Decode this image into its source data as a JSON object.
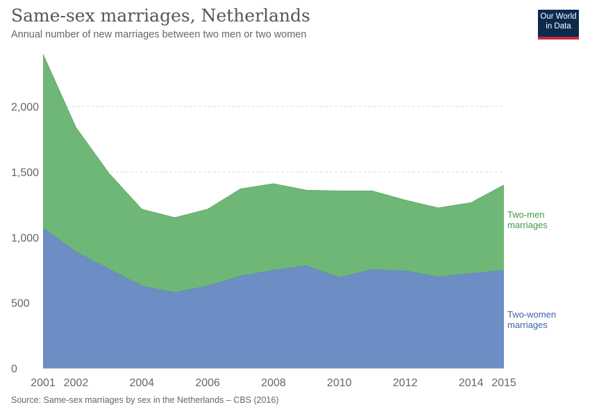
{
  "header": {
    "title": "Same-sex marriages, Netherlands",
    "subtitle": "Annual number of new marriages between two men or two women"
  },
  "logo": {
    "line1": "Our World",
    "line2": "in Data"
  },
  "footer": {
    "source": "Source: Same-sex marriages by sex in the Netherlands – CBS (2016)"
  },
  "chart_data": {
    "type": "area",
    "stacked": true,
    "x": [
      2001,
      2002,
      2003,
      2004,
      2005,
      2006,
      2007,
      2008,
      2009,
      2010,
      2011,
      2012,
      2013,
      2014,
      2015
    ],
    "series": [
      {
        "name": "Two-women marriages",
        "label_lines": [
          "Two-women",
          "marriages"
        ],
        "color": "#6c8ec4",
        "values": [
          1075,
          890,
          760,
          630,
          580,
          630,
          705,
          750,
          785,
          695,
          755,
          745,
          700,
          725,
          750
        ]
      },
      {
        "name": "Two-men marriages",
        "label_lines": [
          "Two-men",
          "marriages"
        ],
        "color": "#6fb776",
        "values": [
          1325,
          950,
          730,
          585,
          570,
          585,
          665,
          660,
          575,
          660,
          600,
          540,
          525,
          540,
          650
        ]
      }
    ],
    "xlim": [
      2001,
      2015
    ],
    "ylim": [
      0,
      2400
    ],
    "yticks": [
      0,
      500,
      1000,
      1500,
      2000
    ],
    "ytick_labels": [
      "0",
      "500",
      "1,000",
      "1,500",
      "2,000"
    ],
    "xticks": [
      2001,
      2002,
      2004,
      2006,
      2008,
      2010,
      2012,
      2014,
      2015
    ],
    "grid": "horizontal-dashed",
    "legend": "inline-right"
  }
}
